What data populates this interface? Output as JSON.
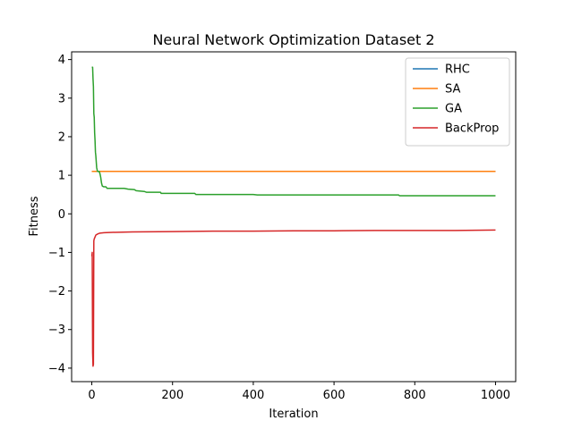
{
  "chart_data": {
    "type": "line",
    "title": "Neural Network Optimization Dataset 2",
    "xlabel": "Iteration",
    "ylabel": "Fitness",
    "xlim": [
      -50,
      1050
    ],
    "ylim": [
      -4.35,
      4.2
    ],
    "xticks": [
      0,
      200,
      400,
      600,
      800,
      1000
    ],
    "yticks": [
      -4,
      -3,
      -2,
      -1,
      0,
      1,
      2,
      3,
      4
    ],
    "xtick_labels": [
      "0",
      "200",
      "400",
      "600",
      "800",
      "1000"
    ],
    "ytick_labels": [
      "−4",
      "−3",
      "−2",
      "−1",
      "0",
      "1",
      "2",
      "3",
      "4"
    ],
    "grid": false,
    "legend_position": "top-right",
    "series": [
      {
        "name": "RHC",
        "color": "#1f77b4",
        "points": [
          [
            0,
            1.1
          ],
          [
            1000,
            1.1
          ]
        ]
      },
      {
        "name": "SA",
        "color": "#ff7f0e",
        "points": [
          [
            0,
            1.1
          ],
          [
            1000,
            1.1
          ]
        ]
      },
      {
        "name": "GA",
        "color": "#2ca02c",
        "points": [
          [
            0,
            3.8
          ],
          [
            2,
            3.8
          ],
          [
            3,
            3.5
          ],
          [
            4,
            3.3
          ],
          [
            5,
            2.6
          ],
          [
            6,
            2.5
          ],
          [
            7,
            2.1
          ],
          [
            8,
            1.9
          ],
          [
            9,
            1.6
          ],
          [
            10,
            1.5
          ],
          [
            12,
            1.2
          ],
          [
            14,
            1.1
          ],
          [
            18,
            1.1
          ],
          [
            20,
            1.05
          ],
          [
            22,
            0.95
          ],
          [
            24,
            0.8
          ],
          [
            26,
            0.72
          ],
          [
            30,
            0.7
          ],
          [
            35,
            0.7
          ],
          [
            38,
            0.66
          ],
          [
            80,
            0.66
          ],
          [
            90,
            0.64
          ],
          [
            105,
            0.63
          ],
          [
            110,
            0.6
          ],
          [
            130,
            0.58
          ],
          [
            135,
            0.56
          ],
          [
            170,
            0.56
          ],
          [
            172,
            0.53
          ],
          [
            255,
            0.53
          ],
          [
            258,
            0.5
          ],
          [
            400,
            0.5
          ],
          [
            410,
            0.49
          ],
          [
            760,
            0.49
          ],
          [
            762,
            0.47
          ],
          [
            1000,
            0.47
          ]
        ]
      },
      {
        "name": "BackProp",
        "color": "#d62728",
        "points": [
          [
            0,
            -1.1
          ],
          [
            1,
            -1.0
          ],
          [
            2,
            -3.6
          ],
          [
            3,
            -3.95
          ],
          [
            4,
            -3.9
          ],
          [
            5,
            -0.7
          ],
          [
            6,
            -0.65
          ],
          [
            8,
            -0.6
          ],
          [
            10,
            -0.55
          ],
          [
            15,
            -0.52
          ],
          [
            20,
            -0.5
          ],
          [
            30,
            -0.49
          ],
          [
            50,
            -0.48
          ],
          [
            100,
            -0.47
          ],
          [
            200,
            -0.46
          ],
          [
            300,
            -0.45
          ],
          [
            400,
            -0.45
          ],
          [
            500,
            -0.44
          ],
          [
            600,
            -0.44
          ],
          [
            700,
            -0.43
          ],
          [
            800,
            -0.43
          ],
          [
            900,
            -0.43
          ],
          [
            1000,
            -0.42
          ]
        ]
      }
    ]
  }
}
